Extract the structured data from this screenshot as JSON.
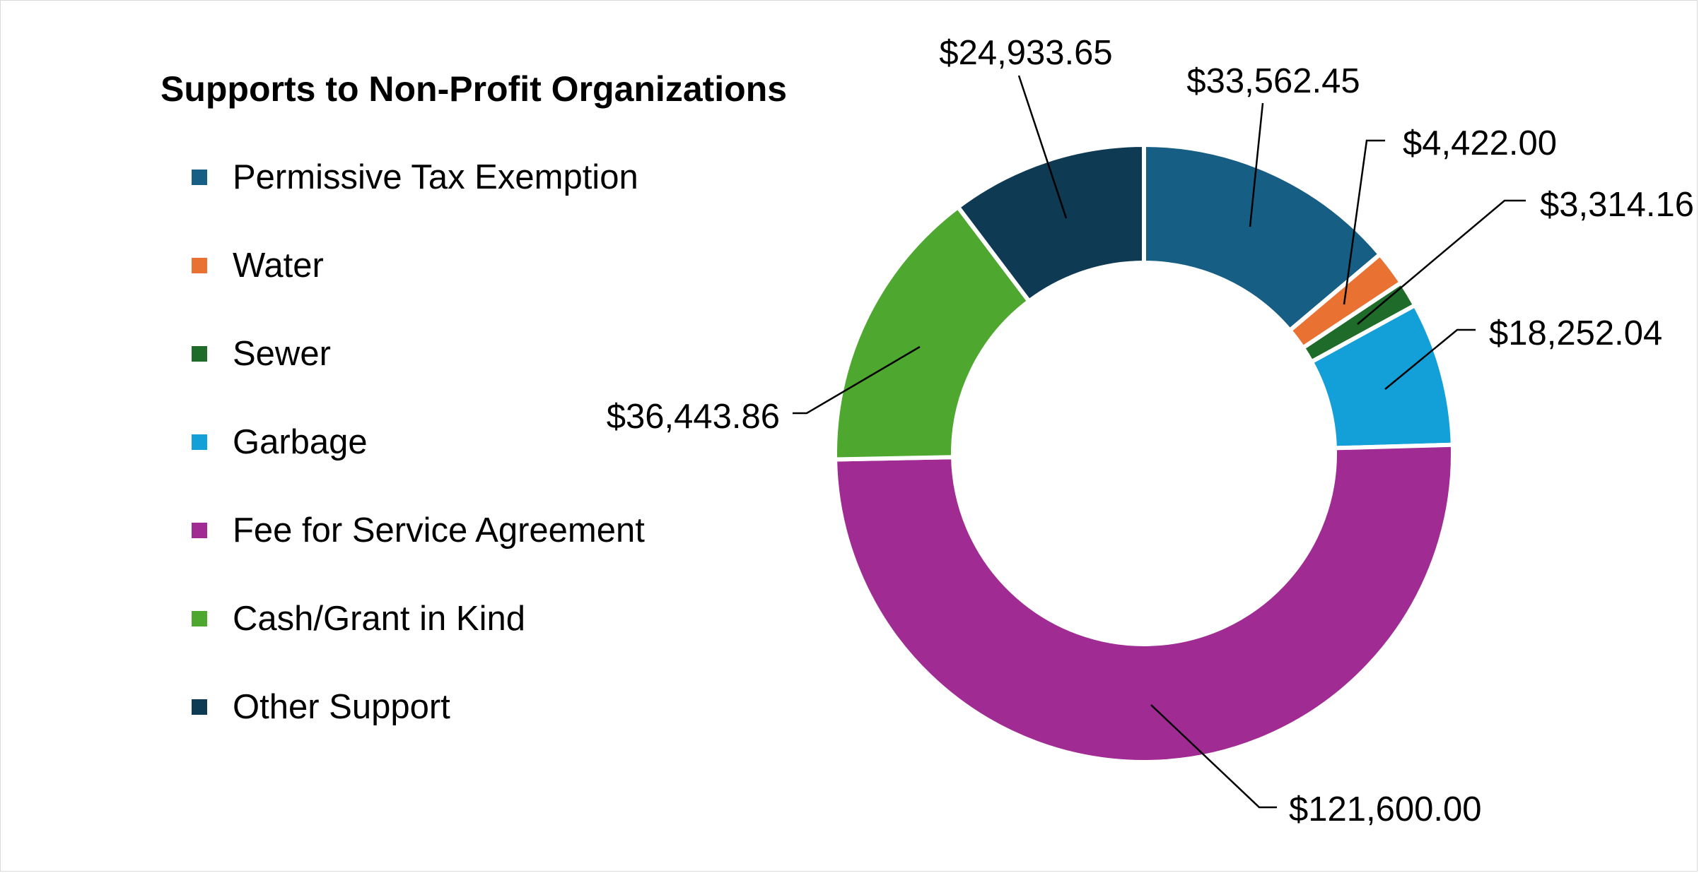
{
  "chart_data": {
    "type": "pie",
    "variant": "donut",
    "title": "Supports to Non-Profit Organizations",
    "legend_position": "left",
    "categories": [
      "Permissive Tax Exemption",
      "Water",
      "Sewer",
      "Garbage",
      "Fee for Service Agreement",
      "Cash/Grant in Kind",
      "Other Support"
    ],
    "values": [
      33562.45,
      4422.0,
      3314.16,
      18252.04,
      121600.0,
      36443.86,
      24933.65
    ],
    "value_labels": [
      "$33,562.45",
      "$4,422.00",
      "$3,314.16",
      "$18,252.04",
      "$121,600.00",
      "$36,443.86",
      "$24,933.65"
    ],
    "colors": [
      "#165e83",
      "#e97132",
      "#1e6b2a",
      "#13a0d8",
      "#a02b93",
      "#4ea72e",
      "#0e3a53"
    ]
  }
}
